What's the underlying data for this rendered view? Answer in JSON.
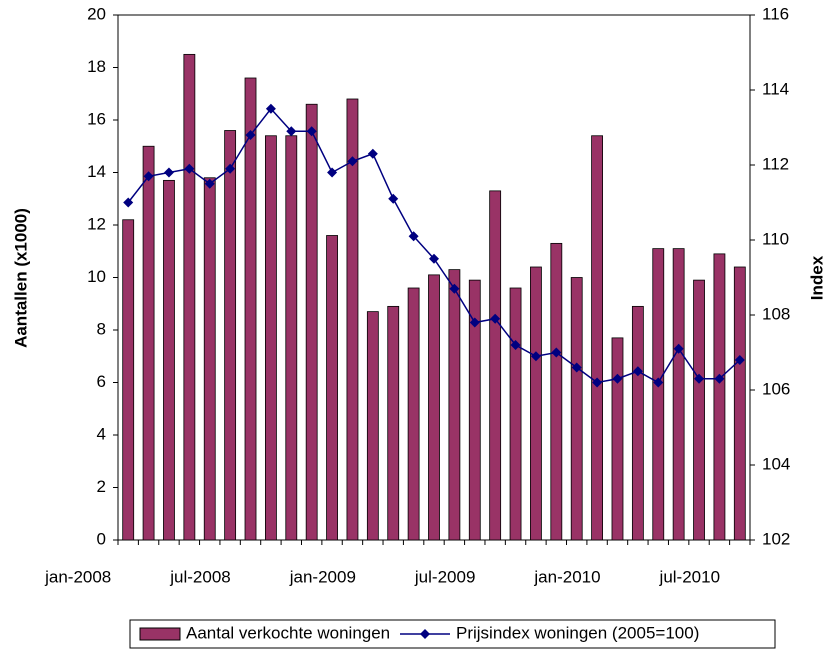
{
  "chart_data": {
    "type": "bar-line",
    "categories": [
      "jan-2008",
      null,
      null,
      null,
      null,
      null,
      "jul-2008",
      null,
      null,
      null,
      null,
      null,
      "jan-2009",
      null,
      null,
      null,
      null,
      null,
      "jul-2009",
      null,
      null,
      null,
      null,
      null,
      "jan-2010",
      null,
      null,
      null,
      null,
      null,
      "jul-2010"
    ],
    "series": [
      {
        "name": "Aantal verkochte woningen",
        "color": "#993366",
        "type": "bar",
        "values": [
          12.2,
          15.0,
          13.7,
          18.5,
          13.8,
          15.6,
          17.6,
          15.4,
          15.4,
          16.6,
          11.6,
          16.8,
          8.7,
          8.9,
          9.6,
          10.1,
          10.3,
          9.9,
          13.3,
          9.6,
          10.4,
          11.3,
          10.0,
          15.4,
          7.7,
          8.9,
          11.1,
          11.1,
          9.9,
          10.9,
          10.4
        ]
      },
      {
        "name": "Prijsindex woningen (2005=100)",
        "color": "#000080",
        "type": "line",
        "axis": "y2",
        "values": [
          111.0,
          111.7,
          111.8,
          111.9,
          111.5,
          111.9,
          112.8,
          113.5,
          112.9,
          112.9,
          111.8,
          112.1,
          112.3,
          111.1,
          110.1,
          109.5,
          108.7,
          107.8,
          107.9,
          107.2,
          106.9,
          107.0,
          106.6,
          106.2,
          106.3,
          106.5,
          106.2,
          107.1,
          106.3,
          106.3,
          106.8
        ]
      }
    ],
    "ylabel": "Aantallen (x1000)",
    "y2label": "Index",
    "ylim": [
      0,
      20
    ],
    "yticks": [
      0,
      2,
      4,
      6,
      8,
      10,
      12,
      14,
      16,
      18,
      20
    ],
    "y2lim": [
      102,
      116
    ],
    "y2ticks": [
      102,
      104,
      106,
      108,
      110,
      112,
      114,
      116
    ],
    "legend": "bottom"
  }
}
